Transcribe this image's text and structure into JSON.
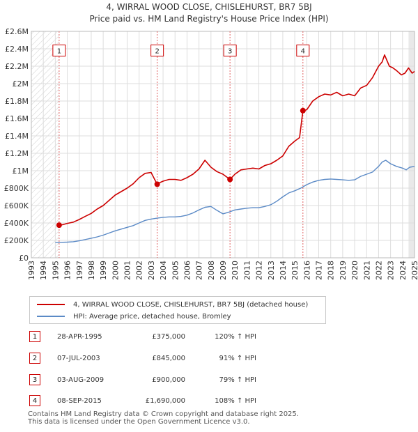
{
  "title": {
    "line1": "4, WIRRAL WOOD CLOSE, CHISLEHURST, BR7 5BJ",
    "line2": "Price paid vs. HM Land Registry's House Price Index (HPI)"
  },
  "chart_data": {
    "type": "line",
    "title": "4, WIRRAL WOOD CLOSE, CHISLEHURST, BR7 5BJ",
    "subtitle": "Price paid vs. HM Land Registry's House Price Index (HPI)",
    "xlabel": "",
    "ylabel": "",
    "xlim": [
      1993,
      2025
    ],
    "ylim": [
      0,
      2600000
    ],
    "grid": true,
    "yticks": [
      {
        "value": 0,
        "label": "£0"
      },
      {
        "value": 200000,
        "label": "£200K"
      },
      {
        "value": 400000,
        "label": "£400K"
      },
      {
        "value": 600000,
        "label": "£600K"
      },
      {
        "value": 800000,
        "label": "£800K"
      },
      {
        "value": 1000000,
        "label": "£1M"
      },
      {
        "value": 1200000,
        "label": "£1.2M"
      },
      {
        "value": 1400000,
        "label": "£1.4M"
      },
      {
        "value": 1600000,
        "label": "£1.6M"
      },
      {
        "value": 1800000,
        "label": "£1.8M"
      },
      {
        "value": 2000000,
        "label": "£2M"
      },
      {
        "value": 2200000,
        "label": "£2.2M"
      },
      {
        "value": 2400000,
        "label": "£2.4M"
      },
      {
        "value": 2600000,
        "label": "£2.6M"
      }
    ],
    "xticks": [
      "1993",
      "1994",
      "1995",
      "1996",
      "1997",
      "1998",
      "1999",
      "2000",
      "2001",
      "2002",
      "2003",
      "2004",
      "2005",
      "2006",
      "2007",
      "2008",
      "2009",
      "2010",
      "2011",
      "2012",
      "2013",
      "2014",
      "2015",
      "2016",
      "2017",
      "2018",
      "2019",
      "2020",
      "2021",
      "2022",
      "2023",
      "2024",
      "2025"
    ],
    "hatched_before": 1995.32,
    "shaded_after": 2024.5,
    "series": [
      {
        "name": "4, WIRRAL WOOD CLOSE, CHISLEHURST, BR7 5BJ (detached house)",
        "color": "#cc0000",
        "x": [
          1995.32,
          1995.6,
          1996,
          1996.5,
          1997,
          1997.5,
          1998,
          1998.5,
          1999,
          1999.5,
          2000,
          2000.5,
          2001,
          2001.5,
          2002,
          2002.5,
          2003,
          2003.5,
          2003.51,
          2004,
          2004.5,
          2005,
          2005.5,
          2006,
          2006.5,
          2007,
          2007.5,
          2008,
          2008.5,
          2009,
          2009.59,
          2010,
          2010.5,
          2011,
          2011.5,
          2012,
          2012.5,
          2013,
          2013.5,
          2014,
          2014.5,
          2015,
          2015.4,
          2015.68,
          2016,
          2016.5,
          2017,
          2017.5,
          2018,
          2018.5,
          2019,
          2019.5,
          2020,
          2020.5,
          2021,
          2021.5,
          2022,
          2022.3,
          2022.5,
          2022.9,
          2023.2,
          2023.5,
          2023.9,
          2024.2,
          2024.5,
          2024.8,
          2025
        ],
        "y": [
          375000,
          380000,
          395000,
          410000,
          440000,
          475000,
          510000,
          560000,
          600000,
          660000,
          720000,
          760000,
          800000,
          850000,
          920000,
          970000,
          980000,
          845000,
          850000,
          880000,
          900000,
          900000,
          890000,
          920000,
          960000,
          1020000,
          1120000,
          1040000,
          990000,
          960000,
          900000,
          960000,
          1010000,
          1020000,
          1030000,
          1020000,
          1060000,
          1080000,
          1120000,
          1170000,
          1280000,
          1340000,
          1380000,
          1690000,
          1700000,
          1800000,
          1850000,
          1880000,
          1870000,
          1900000,
          1860000,
          1880000,
          1860000,
          1950000,
          1980000,
          2070000,
          2200000,
          2250000,
          2330000,
          2200000,
          2180000,
          2150000,
          2100000,
          2120000,
          2180000,
          2120000,
          2140000
        ]
      },
      {
        "name": "HPI: Average price, detached house, Bromley",
        "color": "#5b8ac6",
        "x": [
          1995,
          1995.5,
          1996,
          1996.5,
          1997,
          1997.5,
          1998,
          1998.5,
          1999,
          1999.5,
          2000,
          2000.5,
          2001,
          2001.5,
          2002,
          2002.5,
          2003,
          2003.5,
          2004,
          2004.5,
          2005,
          2005.5,
          2006,
          2006.5,
          2007,
          2007.5,
          2008,
          2008.5,
          2009,
          2009.5,
          2010,
          2010.5,
          2011,
          2011.5,
          2012,
          2012.5,
          2013,
          2013.5,
          2014,
          2014.5,
          2015,
          2015.5,
          2016,
          2016.5,
          2017,
          2017.5,
          2018,
          2018.5,
          2019,
          2019.5,
          2020,
          2020.5,
          2021,
          2021.5,
          2022,
          2022.3,
          2022.6,
          2023,
          2023.5,
          2024,
          2024.3,
          2024.6,
          2025
        ],
        "y": [
          175000,
          178000,
          180000,
          185000,
          195000,
          210000,
          225000,
          240000,
          260000,
          285000,
          310000,
          330000,
          350000,
          370000,
          400000,
          430000,
          445000,
          455000,
          465000,
          470000,
          470000,
          475000,
          490000,
          515000,
          550000,
          580000,
          590000,
          545000,
          505000,
          525000,
          550000,
          560000,
          570000,
          575000,
          575000,
          590000,
          610000,
          650000,
          700000,
          745000,
          770000,
          800000,
          840000,
          870000,
          890000,
          900000,
          905000,
          900000,
          895000,
          890000,
          895000,
          935000,
          960000,
          985000,
          1050000,
          1100000,
          1120000,
          1080000,
          1050000,
          1030000,
          1010000,
          1040000,
          1050000
        ]
      }
    ],
    "sales": [
      {
        "num": "1",
        "x": 1995.32,
        "price": 375000
      },
      {
        "num": "2",
        "x": 2003.51,
        "price": 845000
      },
      {
        "num": "3",
        "x": 2009.59,
        "price": 900000
      },
      {
        "num": "4",
        "x": 2015.68,
        "price": 1690000
      }
    ],
    "annotation_value": 2380000
  },
  "legend": {
    "items": [
      {
        "label": "4, WIRRAL WOOD CLOSE, CHISLEHURST, BR7 5BJ (detached house)",
        "color": "#cc0000"
      },
      {
        "label": "HPI: Average price, detached house, Bromley",
        "color": "#5b8ac6"
      }
    ]
  },
  "transactions": [
    {
      "num": "1",
      "date": "28-APR-1995",
      "price": "£375,000",
      "hpi": "120% ↑ HPI"
    },
    {
      "num": "2",
      "date": "07-JUL-2003",
      "price": "£845,000",
      "hpi": "91% ↑ HPI"
    },
    {
      "num": "3",
      "date": "03-AUG-2009",
      "price": "£900,000",
      "hpi": "79% ↑ HPI"
    },
    {
      "num": "4",
      "date": "08-SEP-2015",
      "price": "£1,690,000",
      "hpi": "108% ↑ HPI"
    }
  ],
  "footer": {
    "line1": "Contains HM Land Registry data © Crown copyright and database right 2025.",
    "line2": "This data is licensed under the Open Government Licence v3.0."
  }
}
